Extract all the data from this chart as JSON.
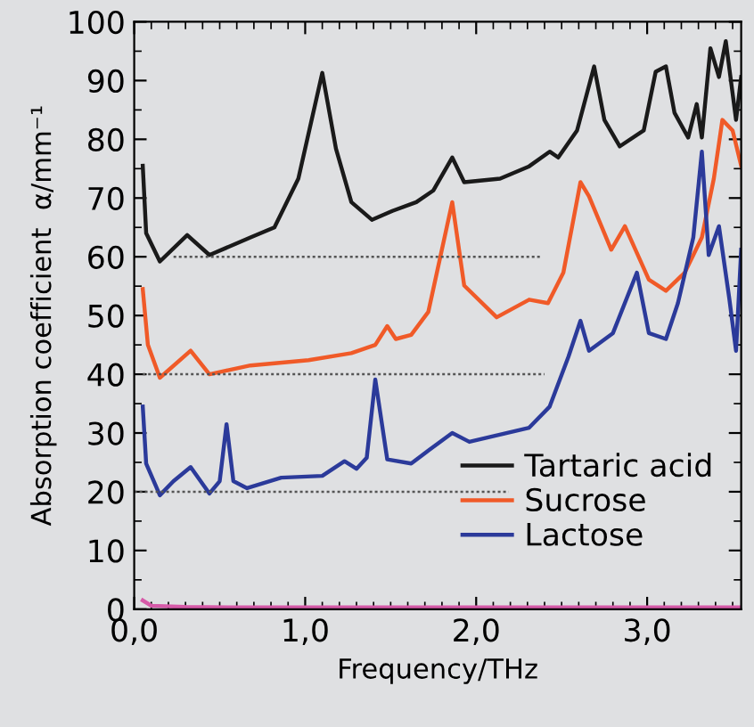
{
  "chart_data": {
    "type": "line",
    "xlabel": "Frequency/THz",
    "ylabel": "Absorption coefficient  α/mm⁻¹",
    "xlim": [
      0,
      3.55
    ],
    "xticks": [
      {
        "value": 0,
        "label": "0,0"
      },
      {
        "value": 1,
        "label": "1,0"
      },
      {
        "value": 2,
        "label": "2,0"
      },
      {
        "value": 3,
        "label": "3,0"
      }
    ],
    "ylim": [
      0,
      100
    ],
    "yticks": [
      0,
      10,
      20,
      30,
      40,
      50,
      60,
      70,
      80,
      90,
      100
    ],
    "grid": false,
    "legend": "bottom right",
    "line_style": "solid",
    "marker": "none",
    "series": [
      {
        "name": "Tartaric acid",
        "color": "#1a1a1a",
        "x": [
          0.05,
          0.07,
          0.15,
          0.31,
          0.44,
          0.68,
          0.82,
          0.96,
          1.1,
          1.18,
          1.27,
          1.39,
          1.51,
          1.65,
          1.75,
          1.86,
          1.93,
          2.14,
          2.31,
          2.43,
          2.48,
          2.59,
          2.69,
          2.75,
          2.84,
          2.98,
          3.05,
          3.11,
          3.16,
          3.24,
          3.29,
          3.32,
          3.37,
          3.42,
          3.46,
          3.52,
          3.55
        ],
        "values": [
          75.5,
          64,
          59.2,
          63.7,
          60.3,
          63.3,
          65,
          73.3,
          91.3,
          78.4,
          69.3,
          66.3,
          67.8,
          69.3,
          71.3,
          76.9,
          72.7,
          73.3,
          75.4,
          77.9,
          76.9,
          81.5,
          92.4,
          83.3,
          78.8,
          81.5,
          91.5,
          92.4,
          84.5,
          80.3,
          86,
          80.3,
          95.5,
          90.6,
          96.7,
          83.3,
          90.6
        ]
      },
      {
        "name": "Sucrose",
        "color": "#f05a28",
        "x": [
          0.05,
          0.08,
          0.15,
          0.33,
          0.44,
          0.68,
          1.02,
          1.27,
          1.41,
          1.48,
          1.53,
          1.62,
          1.72,
          1.86,
          1.93,
          2.12,
          2.31,
          2.42,
          2.51,
          2.61,
          2.66,
          2.79,
          2.87,
          3.01,
          3.11,
          3.22,
          3.32,
          3.39,
          3.44,
          3.5,
          3.55
        ],
        "values": [
          54.5,
          45,
          39.4,
          44,
          40,
          41.5,
          42.4,
          43.6,
          45,
          48.2,
          46,
          46.7,
          50.6,
          69.3,
          55.1,
          49.7,
          52.7,
          52.1,
          57.3,
          72.7,
          70.3,
          61.2,
          65.2,
          56.1,
          54.2,
          57.3,
          63.3,
          73.3,
          83.3,
          81.5,
          75.5
        ]
      },
      {
        "name": "Lactose",
        "color": "#2b3a9a",
        "x": [
          0.05,
          0.07,
          0.15,
          0.23,
          0.33,
          0.44,
          0.5,
          0.54,
          0.58,
          0.66,
          0.86,
          1.1,
          1.23,
          1.3,
          1.36,
          1.41,
          1.48,
          1.62,
          1.72,
          1.86,
          1.96,
          2.31,
          2.43,
          2.54,
          2.61,
          2.66,
          2.8,
          2.94,
          3.01,
          3.11,
          3.18,
          3.27,
          3.32,
          3.36,
          3.42,
          3.48,
          3.52,
          3.55
        ],
        "values": [
          34.5,
          24.8,
          19.4,
          21.8,
          24.2,
          19.7,
          21.8,
          31.5,
          21.8,
          20.6,
          22.4,
          22.7,
          25.2,
          23.9,
          25.8,
          39.1,
          25.5,
          24.8,
          27,
          30,
          28.5,
          30.9,
          34.5,
          43,
          49.1,
          44,
          47,
          57.3,
          47,
          46,
          52.1,
          63.3,
          77.9,
          60.3,
          65.2,
          53,
          44,
          61.2
        ]
      },
      {
        "color": "#d65aa8",
        "x": [
          0.05,
          0.1,
          0.3,
          0.6,
          1.0,
          2.0,
          3.0,
          3.55
        ],
        "values": [
          1.5,
          0.6,
          0.4,
          0.3,
          0.3,
          0.3,
          0.3,
          0.3
        ]
      },
      {
        "color": "#555555",
        "line_style": "dotted",
        "x": [
          0.23,
          2.38
        ],
        "values": [
          60,
          60
        ]
      },
      {
        "color": "#555555",
        "line_style": "dotted",
        "x": [
          0.05,
          2.4
        ],
        "values": [
          40,
          40
        ]
      },
      {
        "color": "#555555",
        "line_style": "dotted",
        "x": [
          0.0,
          2.19
        ],
        "values": [
          20,
          20
        ]
      }
    ]
  }
}
